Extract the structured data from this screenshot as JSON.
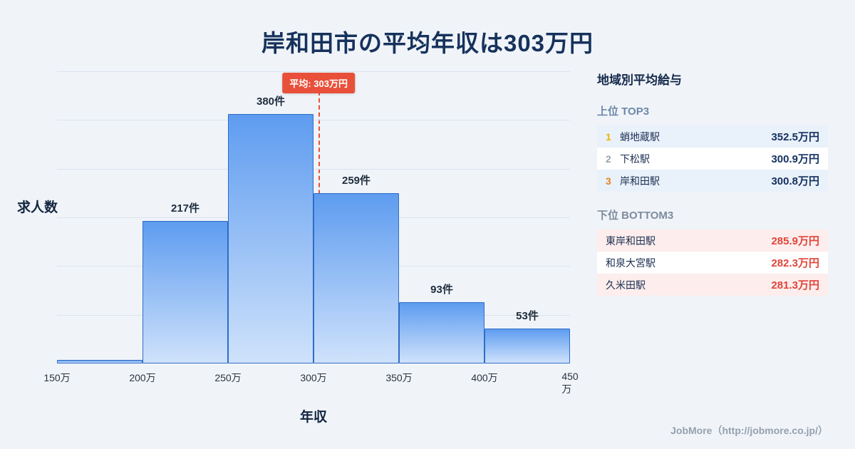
{
  "page": {
    "title": "岸和田市の平均年収は303万円",
    "background": "#f0f4f9"
  },
  "chart_data": {
    "type": "bar",
    "title": "岸和田市の平均年収は303万円",
    "xlabel": "年収",
    "ylabel": "求人数",
    "xlim": [
      150,
      450
    ],
    "ylim": [
      0,
      445
    ],
    "grid": true,
    "legend_position": "none",
    "bin_width": 50,
    "categories": [
      "150万",
      "200万",
      "250万",
      "300万",
      "350万",
      "400万",
      "450万"
    ],
    "bins": [
      {
        "range_start": 150,
        "range_end": 200,
        "count": 5,
        "label": ""
      },
      {
        "range_start": 200,
        "range_end": 250,
        "count": 217,
        "label": "217件"
      },
      {
        "range_start": 250,
        "range_end": 300,
        "count": 380,
        "label": "380件"
      },
      {
        "range_start": 300,
        "range_end": 350,
        "count": 259,
        "label": "259件"
      },
      {
        "range_start": 350,
        "range_end": 400,
        "count": 93,
        "label": "93件"
      },
      {
        "range_start": 400,
        "range_end": 450,
        "count": 53,
        "label": "53件"
      }
    ],
    "average_line": {
      "value": 303,
      "label": "平均: 303万円"
    }
  },
  "sidebar": {
    "heading": "地域別平均給与",
    "top": {
      "heading": "上位 TOP3",
      "rows": [
        {
          "rank": "1",
          "name": "蛸地蔵駅",
          "value": "352.5万円"
        },
        {
          "rank": "2",
          "name": "下松駅",
          "value": "300.9万円"
        },
        {
          "rank": "3",
          "name": "岸和田駅",
          "value": "300.8万円"
        }
      ]
    },
    "bottom": {
      "heading": "下位 BOTTOM3",
      "rows": [
        {
          "name": "東岸和田駅",
          "value": "285.9万円"
        },
        {
          "name": "和泉大宮駅",
          "value": "282.3万円"
        },
        {
          "name": "久米田駅",
          "value": "281.3万円"
        }
      ]
    }
  },
  "footer": {
    "credit": "JobMore（http://jobmore.co.jp/）"
  },
  "colors": {
    "title": "#16325c",
    "bar_border": "#2e6dc6",
    "bar_top": "#5e9cf0",
    "bar_bottom": "#cfe2fb",
    "average_line": "#e8503a",
    "top_row_tint": "#e9f1fb",
    "bottom_row_tint": "#fdedec",
    "top_value": "#14305e",
    "bottom_value": "#e0453a",
    "rank1": "#f5b301",
    "rank2": "#9aa5b1",
    "rank3": "#e8821e"
  }
}
